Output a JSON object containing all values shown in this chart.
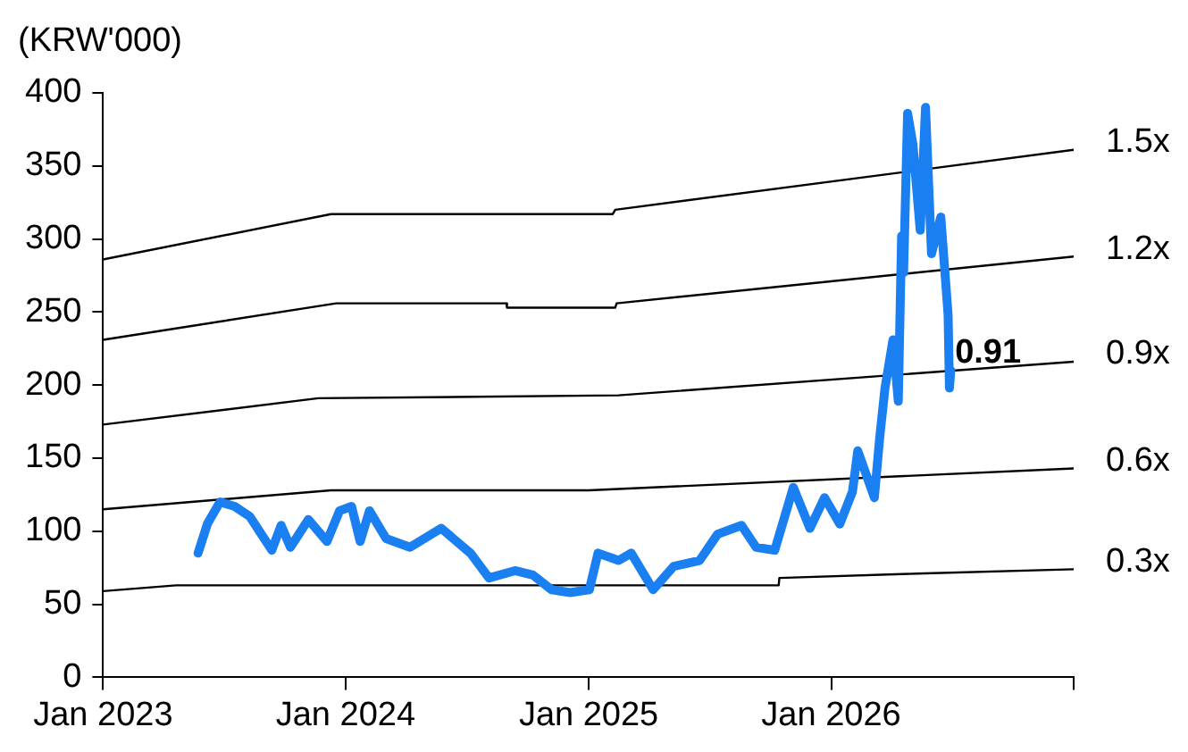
{
  "chart_data": {
    "type": "line",
    "ylabel": "(KRW'000)",
    "xlim": [
      "2023-01-01",
      "2027-01-01"
    ],
    "xticks": [
      {
        "value": "2023-01-01",
        "label": "Jan 2023"
      },
      {
        "value": "2024-01-01",
        "label": "Jan 2024"
      },
      {
        "value": "2025-01-01",
        "label": "Jan 2025"
      },
      {
        "value": "2026-01-01",
        "label": "Jan 2026"
      },
      {
        "value": "2027-01-01",
        "label": null
      }
    ],
    "ylim": [
      0,
      400
    ],
    "yticks": [
      0,
      50,
      100,
      150,
      200,
      250,
      300,
      350,
      400
    ],
    "grid": false,
    "legend": false,
    "marker": "none",
    "line_style": "solid",
    "annotations": [
      {
        "text": "0.91",
        "x": "2026-07-01",
        "y": 215
      }
    ],
    "series": [
      {
        "color": "#1a7ff0",
        "x": [
          "2023-05-24",
          "2023-06-07",
          "2023-06-26",
          "2023-07-18",
          "2023-08-10",
          "2023-09-12",
          "2023-09-26",
          "2023-10-10",
          "2023-11-06",
          "2023-12-04",
          "2023-12-23",
          "2024-01-10",
          "2024-01-23",
          "2024-02-06",
          "2024-03-02",
          "2024-04-07",
          "2024-05-24",
          "2024-07-07",
          "2024-08-04",
          "2024-09-12",
          "2024-10-09",
          "2024-11-06",
          "2024-12-04",
          "2025-01-02",
          "2025-01-15",
          "2025-02-15",
          "2025-03-06",
          "2025-04-08",
          "2025-05-09",
          "2025-06-17",
          "2025-07-14",
          "2025-08-19",
          "2025-09-10",
          "2025-10-08",
          "2025-11-05",
          "2025-11-30",
          "2025-12-22",
          "2026-01-14",
          "2026-02-02",
          "2026-02-10",
          "2026-03-07",
          "2026-03-15",
          "2026-03-23",
          "2026-04-04",
          "2026-04-12",
          "2026-04-17",
          "2026-04-20",
          "2026-04-26",
          "2026-05-04",
          "2026-05-15",
          "2026-05-23",
          "2026-06-01",
          "2026-06-15",
          "2026-06-26",
          "2026-06-28",
          "2026-06-30"
        ],
        "values": [
          85,
          105,
          120,
          117,
          110,
          87,
          104,
          89,
          108,
          93,
          114,
          117,
          93,
          114,
          95,
          89,
          102,
          85,
          68,
          73,
          70,
          60,
          58,
          60,
          85,
          80,
          85,
          60,
          76,
          80,
          98,
          104,
          89,
          87,
          130,
          102,
          123,
          105,
          127,
          155,
          123,
          164,
          198,
          231,
          189,
          302,
          277,
          386,
          365,
          306,
          390,
          290,
          315,
          248,
          198,
          210
        ]
      },
      {
        "name": "1.5x",
        "color": "#000000",
        "x": [
          "2023-01-01",
          "2023-12-10",
          "2025-02-06",
          "2025-02-10",
          "2027-01-01"
        ],
        "values": [
          286,
          317,
          317,
          320,
          361
        ]
      },
      {
        "name": "1.2x",
        "color": "#000000",
        "x": [
          "2023-01-01",
          "2023-12-18",
          "2024-08-30",
          "2024-08-31",
          "2025-02-10",
          "2025-02-12",
          "2027-01-01"
        ],
        "values": [
          231,
          256,
          256,
          253,
          253,
          256,
          288
        ]
      },
      {
        "name": "0.9x",
        "color": "#000000",
        "x": [
          "2023-01-01",
          "2023-11-21",
          "2025-02-15",
          "2027-01-01"
        ],
        "values": [
          173,
          191,
          193,
          216
        ]
      },
      {
        "name": "0.6x",
        "color": "#000000",
        "x": [
          "2023-01-01",
          "2023-12-10",
          "2025-01-01",
          "2027-01-01"
        ],
        "values": [
          115,
          128,
          128,
          143
        ]
      },
      {
        "name": "0.3x",
        "color": "#000000",
        "x": [
          "2023-01-01",
          "2023-04-21",
          "2025-10-14",
          "2025-10-15",
          "2026-05-10",
          "2027-01-01"
        ],
        "values": [
          59,
          63,
          63,
          68,
          71,
          74
        ]
      }
    ]
  }
}
